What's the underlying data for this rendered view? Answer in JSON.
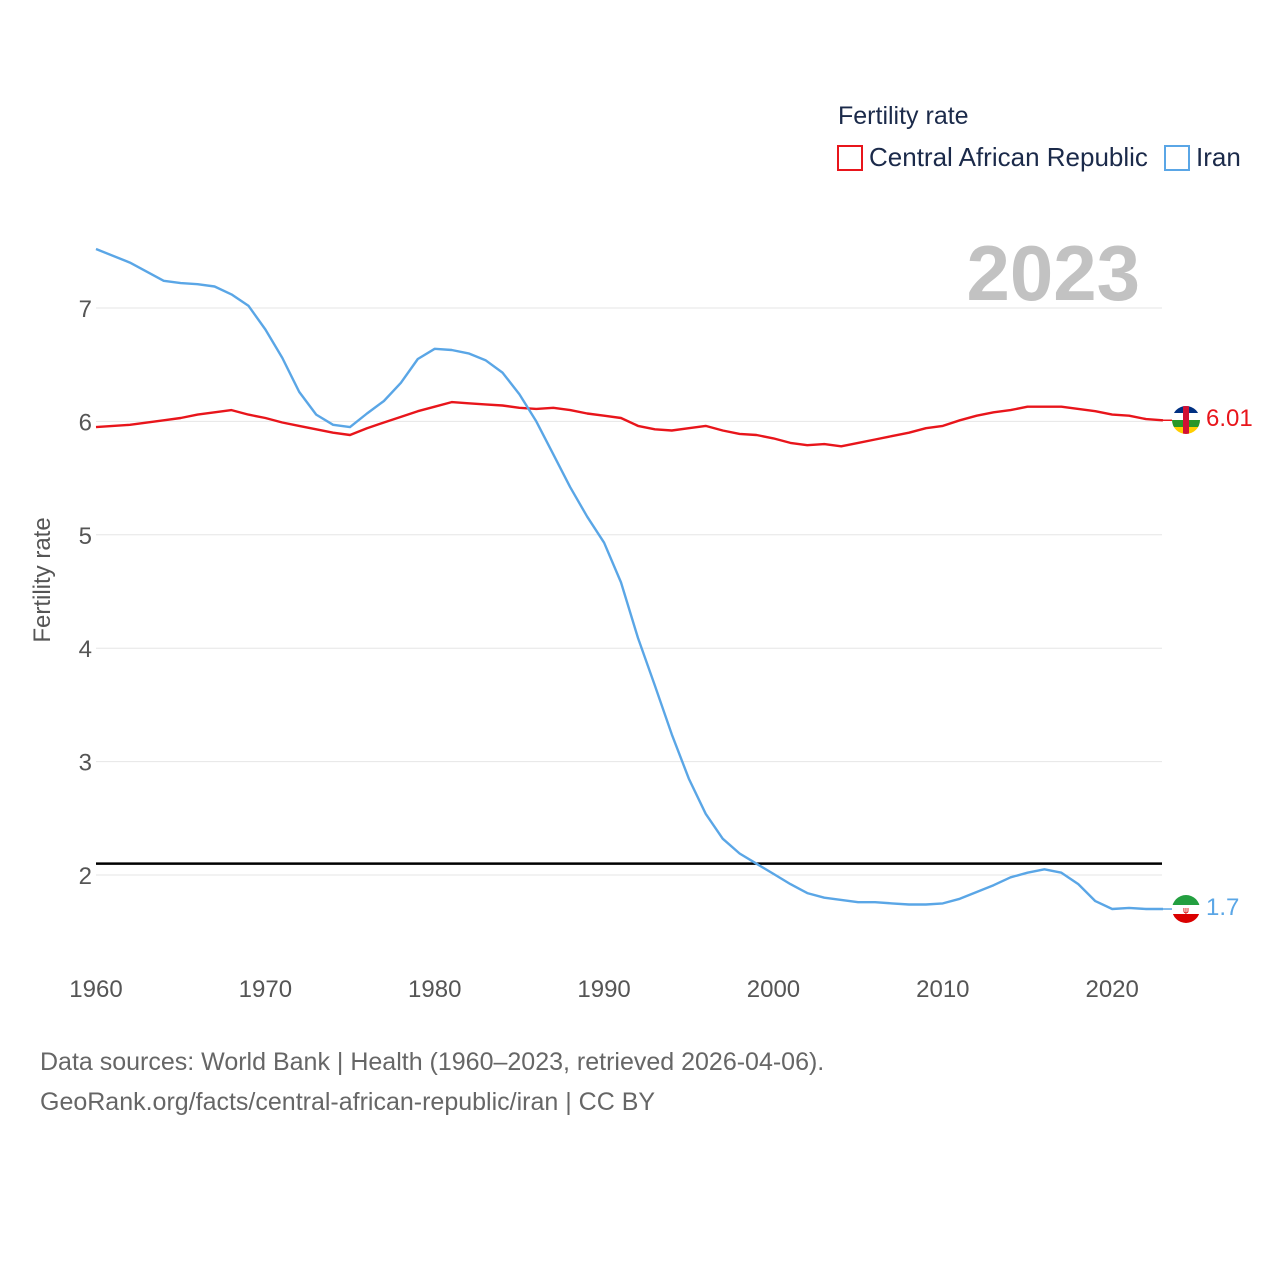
{
  "chart_data": {
    "type": "line",
    "title": "Fertility rate",
    "ylabel": "Fertility rate",
    "xlabel": "",
    "year_label": "2023",
    "x_ticks": [
      1960,
      1970,
      1980,
      1990,
      2000,
      2010,
      2020
    ],
    "y_ticks": [
      2,
      3,
      4,
      5,
      6,
      7
    ],
    "xlim": [
      1960,
      2023
    ],
    "ylim": [
      1.2,
      7.6
    ],
    "reference_line": {
      "value": 2.1,
      "color": "#000000"
    },
    "series": [
      {
        "name": "Central African Republic",
        "color": "#e8151b",
        "end_label": "6.01",
        "x": [
          1960,
          1962,
          1964,
          1965,
          1966,
          1967,
          1968,
          1969,
          1970,
          1971,
          1972,
          1973,
          1974,
          1975,
          1976,
          1977,
          1978,
          1979,
          1980,
          1981,
          1982,
          1983,
          1984,
          1985,
          1986,
          1987,
          1988,
          1989,
          1990,
          1991,
          1992,
          1993,
          1994,
          1995,
          1996,
          1997,
          1998,
          1999,
          2000,
          2001,
          2002,
          2003,
          2004,
          2005,
          2006,
          2007,
          2008,
          2009,
          2010,
          2011,
          2012,
          2013,
          2014,
          2015,
          2016,
          2017,
          2018,
          2019,
          2020,
          2021,
          2022,
          2023
        ],
        "values": [
          5.95,
          5.97,
          6.01,
          6.03,
          6.06,
          6.08,
          6.1,
          6.06,
          6.03,
          5.99,
          5.96,
          5.93,
          5.9,
          5.88,
          5.94,
          5.99,
          6.04,
          6.09,
          6.13,
          6.17,
          6.16,
          6.15,
          6.14,
          6.12,
          6.11,
          6.12,
          6.1,
          6.07,
          6.05,
          6.03,
          5.96,
          5.93,
          5.92,
          5.94,
          5.96,
          5.92,
          5.89,
          5.88,
          5.85,
          5.81,
          5.79,
          5.8,
          5.78,
          5.81,
          5.84,
          5.87,
          5.9,
          5.94,
          5.96,
          6.01,
          6.05,
          6.08,
          6.1,
          6.13,
          6.13,
          6.13,
          6.11,
          6.09,
          6.06,
          6.05,
          6.02,
          6.01
        ]
      },
      {
        "name": "Iran",
        "color": "#5aa6e6",
        "end_label": "1.7",
        "x": [
          1960,
          1962,
          1964,
          1965,
          1966,
          1967,
          1968,
          1969,
          1970,
          1971,
          1972,
          1973,
          1974,
          1975,
          1976,
          1977,
          1978,
          1979,
          1980,
          1981,
          1982,
          1983,
          1984,
          1985,
          1986,
          1987,
          1988,
          1989,
          1990,
          1991,
          1992,
          1993,
          1994,
          1995,
          1996,
          1997,
          1998,
          1999,
          2000,
          2001,
          2002,
          2003,
          2004,
          2005,
          2006,
          2007,
          2008,
          2009,
          2010,
          2011,
          2012,
          2013,
          2014,
          2015,
          2016,
          2017,
          2018,
          2019,
          2020,
          2021,
          2022,
          2023
        ],
        "values": [
          7.52,
          7.4,
          7.24,
          7.22,
          7.21,
          7.19,
          7.12,
          7.02,
          6.81,
          6.56,
          6.26,
          6.06,
          5.97,
          5.95,
          6.07,
          6.18,
          6.34,
          6.55,
          6.64,
          6.63,
          6.6,
          6.54,
          6.43,
          6.24,
          6.0,
          5.71,
          5.42,
          5.16,
          4.93,
          4.58,
          4.09,
          3.67,
          3.24,
          2.85,
          2.54,
          2.32,
          2.19,
          2.1,
          2.01,
          1.92,
          1.84,
          1.8,
          1.78,
          1.76,
          1.76,
          1.75,
          1.74,
          1.74,
          1.75,
          1.79,
          1.85,
          1.91,
          1.98,
          2.02,
          2.05,
          2.02,
          1.92,
          1.77,
          1.7,
          1.71,
          1.7,
          1.7
        ]
      }
    ],
    "legend": {
      "position": "top-right"
    }
  },
  "footer": {
    "line1": "Data sources: World Bank | Health (1960–2023, retrieved 2026-04-06).",
    "line2": "GeoRank.org/facts/central-african-republic/iran | CC BY"
  }
}
